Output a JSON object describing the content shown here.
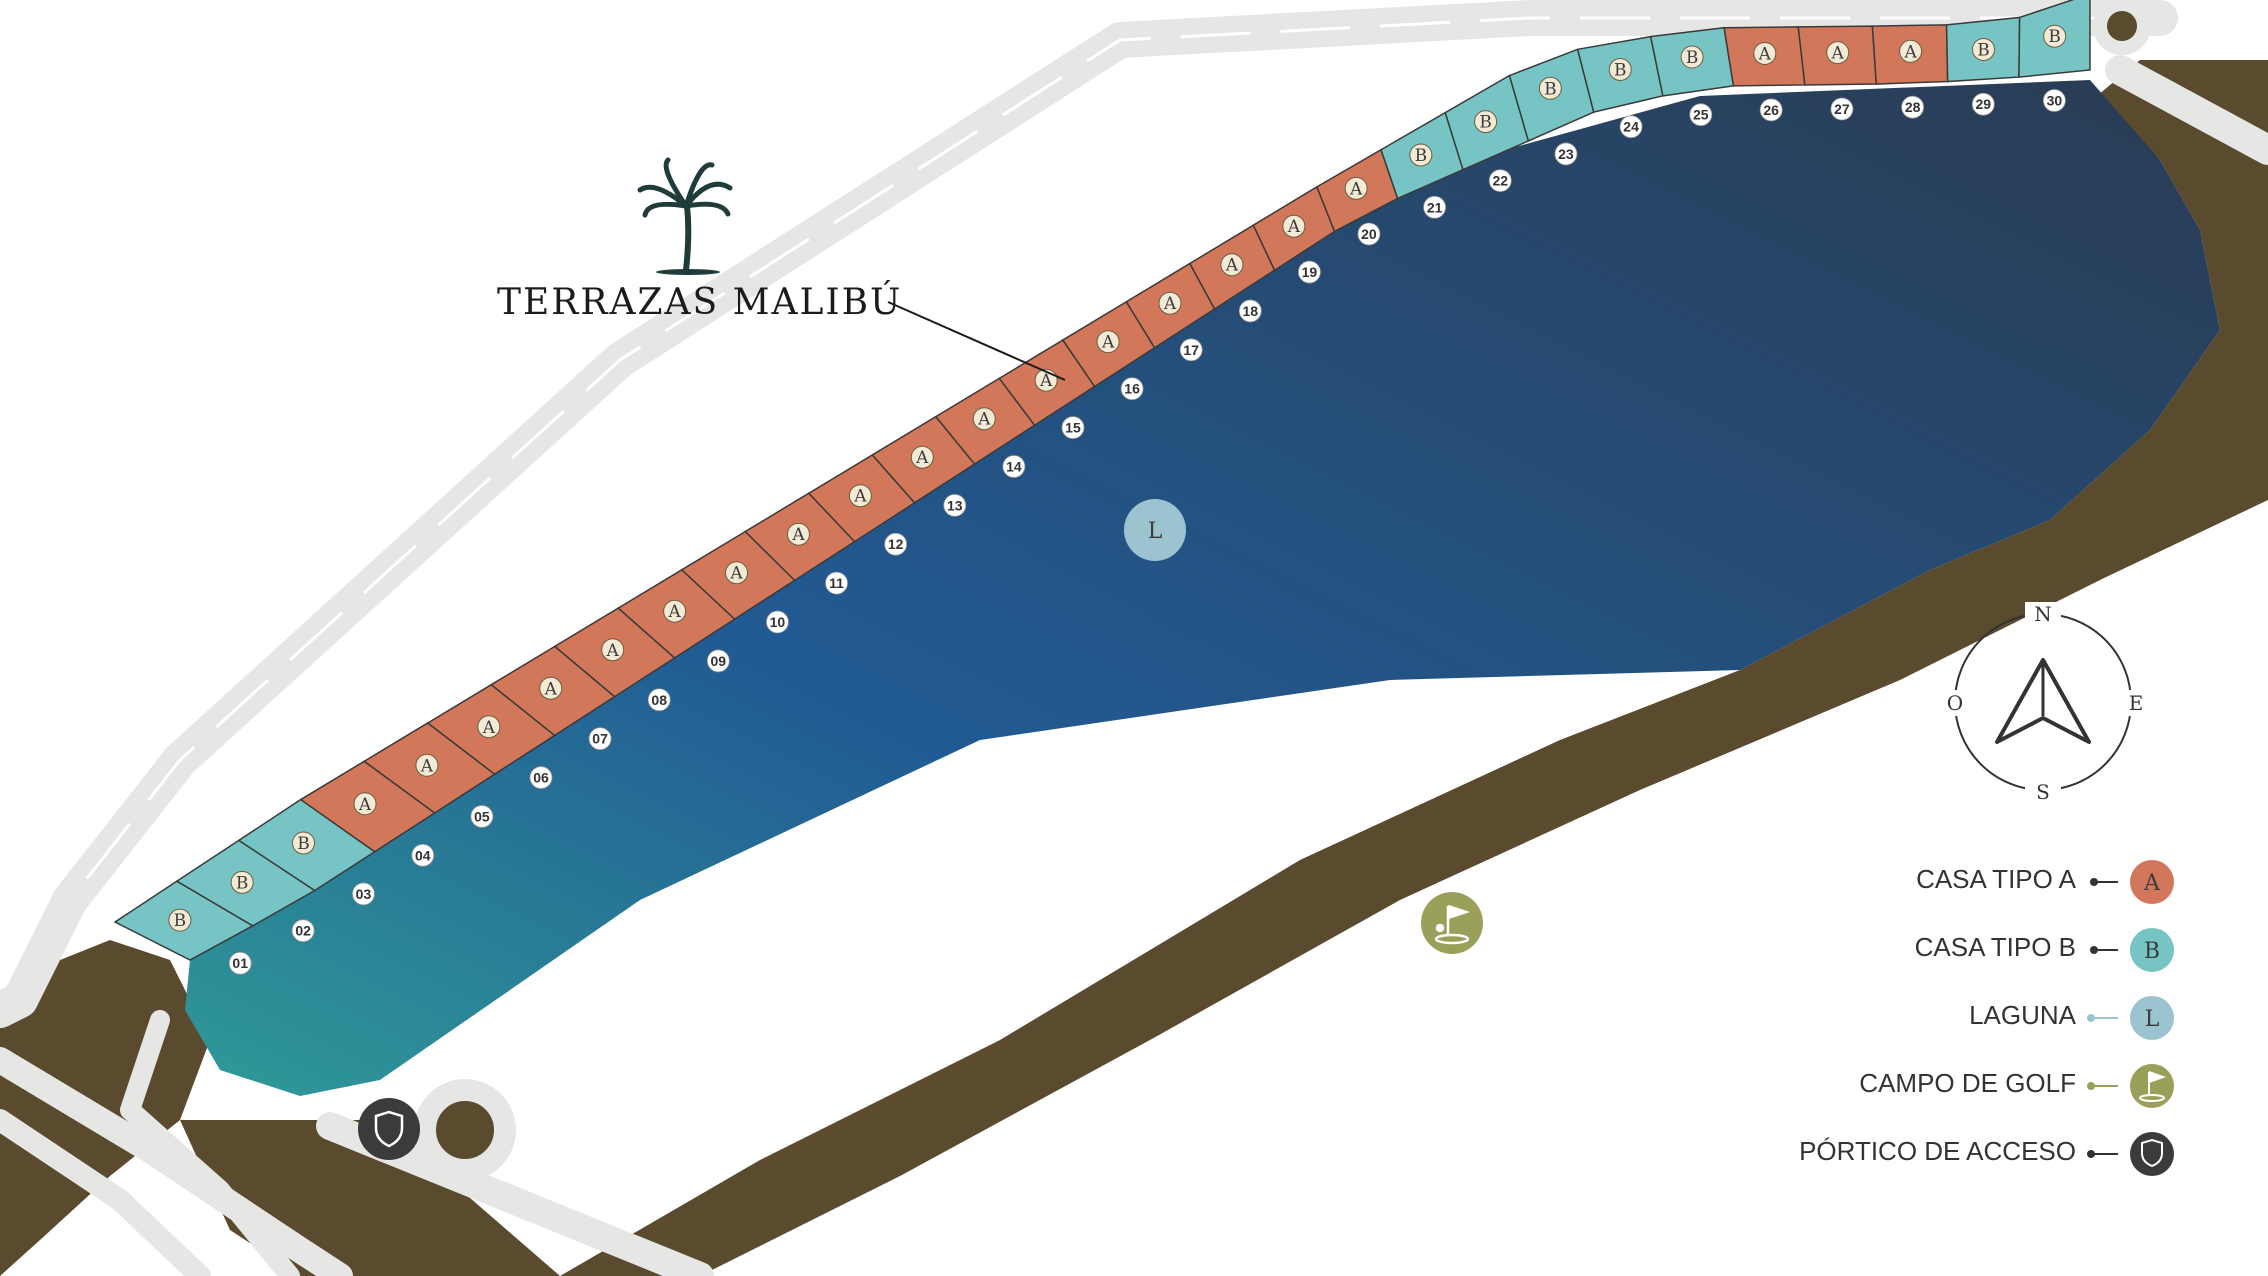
{
  "brand": {
    "name": "TERRAZAS MALIBÚ",
    "logo_icon": "palm-tree-icon"
  },
  "colors": {
    "lot_a": "#d2775a",
    "lot_b": "#76c5c4",
    "lagoon_light": "#9cc3d0",
    "golf": "#9aa05a",
    "portico": "#3b3b3b",
    "land": "#5a4a2e",
    "road": "#e6e6e4",
    "lagoon_deep": "#2a3f58"
  },
  "lots": [
    {
      "num": "01",
      "type": "B"
    },
    {
      "num": "02",
      "type": "B"
    },
    {
      "num": "03",
      "type": "B"
    },
    {
      "num": "04",
      "type": "A"
    },
    {
      "num": "05",
      "type": "A"
    },
    {
      "num": "06",
      "type": "A"
    },
    {
      "num": "07",
      "type": "A"
    },
    {
      "num": "08",
      "type": "A"
    },
    {
      "num": "09",
      "type": "A"
    },
    {
      "num": "10",
      "type": "A"
    },
    {
      "num": "11",
      "type": "A"
    },
    {
      "num": "12",
      "type": "A"
    },
    {
      "num": "13",
      "type": "A"
    },
    {
      "num": "14",
      "type": "A"
    },
    {
      "num": "15",
      "type": "A"
    },
    {
      "num": "16",
      "type": "A"
    },
    {
      "num": "17",
      "type": "A"
    },
    {
      "num": "18",
      "type": "A"
    },
    {
      "num": "19",
      "type": "A"
    },
    {
      "num": "20",
      "type": "A"
    },
    {
      "num": "21",
      "type": "B"
    },
    {
      "num": "22",
      "type": "B"
    },
    {
      "num": "23",
      "type": "B"
    },
    {
      "num": "24",
      "type": "B"
    },
    {
      "num": "25",
      "type": "B"
    },
    {
      "num": "26",
      "type": "A"
    },
    {
      "num": "27",
      "type": "A"
    },
    {
      "num": "28",
      "type": "A"
    },
    {
      "num": "29",
      "type": "B"
    },
    {
      "num": "30",
      "type": "B"
    }
  ],
  "lagoon_marker": "L",
  "golf_marker_icon": "golf-flag-icon",
  "portico_marker_icon": "shield-icon",
  "compass": {
    "n": "N",
    "s": "S",
    "e": "E",
    "o": "O"
  },
  "legend": [
    {
      "label": "CASA TIPO A",
      "glyph": "A",
      "color": "#d2775a",
      "icon": "letter-a-icon"
    },
    {
      "label": "CASA TIPO B",
      "glyph": "B",
      "color": "#76c5c4",
      "icon": "letter-b-icon"
    },
    {
      "label": "LAGUNA",
      "glyph": "L",
      "color": "#9cc3d0",
      "icon": "letter-l-icon"
    },
    {
      "label": "CAMPO DE GOLF",
      "glyph": "",
      "color": "#9aa05a",
      "icon": "golf-flag-icon"
    },
    {
      "label": "PÓRTICO DE ACCESO",
      "glyph": "",
      "color": "#3b3b3b",
      "icon": "shield-icon"
    }
  ]
}
